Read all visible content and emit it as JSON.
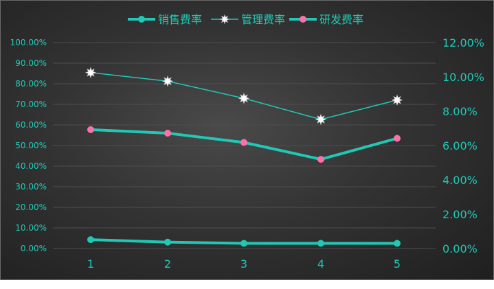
{
  "chart_data": {
    "type": "line",
    "categories": [
      "1",
      "2",
      "3",
      "4",
      "5"
    ],
    "series": [
      {
        "name": "销售费率",
        "axis": "left",
        "values": [
          0.043,
          0.031,
          0.025,
          0.025,
          0.025
        ],
        "line_color": "#1fc9b5",
        "marker_color": "#1fc9b5",
        "marker": "circle"
      },
      {
        "name": "管理费率",
        "axis": "right",
        "values": [
          0.1025,
          0.0975,
          0.0875,
          0.0752,
          0.0865
        ],
        "line_color": "#1fc9b5",
        "marker_color": "#ffffff",
        "marker": "star"
      },
      {
        "name": "研发费率",
        "axis": "left",
        "values": [
          0.577,
          0.56,
          0.515,
          0.433,
          0.535
        ],
        "line_color": "#1fc9b5",
        "marker_color": "#ff6fa8",
        "marker": "circle"
      }
    ],
    "y_left": {
      "min": 0,
      "max": 1.0,
      "step": 0.1,
      "tick_labels": [
        "0.00%",
        "10.00%",
        "20.00%",
        "30.00%",
        "40.00%",
        "50.00%",
        "60.00%",
        "70.00%",
        "80.00%",
        "90.00%",
        "100.00%"
      ]
    },
    "y_right": {
      "min": 0,
      "max": 0.12,
      "step": 0.02,
      "tick_labels": [
        "0.00%",
        "2.00%",
        "4.00%",
        "6.00%",
        "8.00%",
        "10.00%",
        "12.00%"
      ]
    },
    "grid": true,
    "legend_position": "top-center",
    "colors": {
      "axis_text": "#1fc9b5",
      "grid": "#4e4e4e"
    }
  }
}
